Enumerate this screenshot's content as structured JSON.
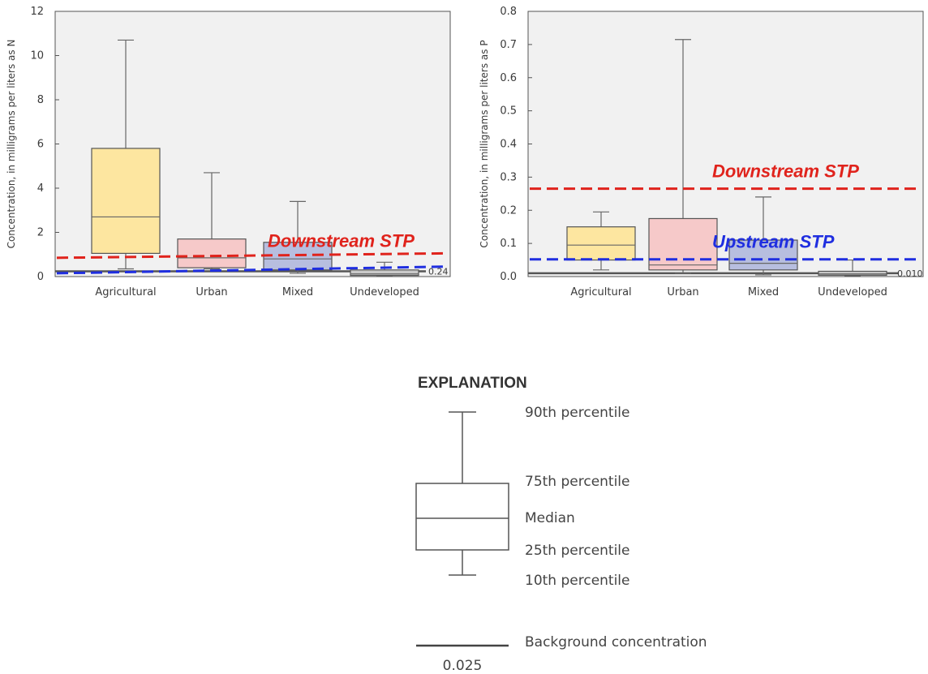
{
  "chart_data": [
    {
      "type": "box",
      "ylabel": "Concentration, in milligrams per liters as N",
      "ylim": [
        0,
        12
      ],
      "yticks": [
        0,
        2,
        4,
        6,
        8,
        10,
        12
      ],
      "categories": [
        "Agricultural",
        "Urban",
        "Mixed",
        "Undeveloped"
      ],
      "colors": [
        "#fde6a0",
        "#f6c9c9",
        "#b7bedf",
        "#c9c9c9"
      ],
      "boxes": [
        {
          "p10": 0.35,
          "p25": 1.05,
          "median": 2.7,
          "p75": 5.8,
          "p90": 10.7
        },
        {
          "p10": 0.35,
          "p25": 0.4,
          "median": 0.85,
          "p75": 1.7,
          "p90": 4.7
        },
        {
          "p10": 0.15,
          "p25": 0.3,
          "median": 0.8,
          "p75": 1.55,
          "p90": 3.4
        },
        {
          "p10": 0.02,
          "p25": 0.05,
          "median": 0.12,
          "p75": 0.3,
          "p90": 0.65
        }
      ],
      "background": {
        "value": 0.24,
        "label": "0.24"
      },
      "reference_lines": [
        {
          "label": "Downstream STP",
          "y_start": 0.85,
          "y_end": 1.05,
          "color": "#e0231c",
          "label_visible": true
        },
        {
          "label": "",
          "y_start": 0.15,
          "y_end": 0.45,
          "color": "#1f2ee0",
          "label_visible": false
        }
      ],
      "grid": false
    },
    {
      "type": "box",
      "ylabel": "Concentration, in milligrams per liters as P",
      "ylim": [
        0,
        0.8
      ],
      "yticks": [
        "0.0",
        "0.1",
        "0.2",
        "0.3",
        "0.4",
        "0.5",
        "0.6",
        "0.7",
        "0.8"
      ],
      "categories": [
        "Agricultural",
        "Urban",
        "Mixed",
        "Undeveloped"
      ],
      "colors": [
        "#fde6a0",
        "#f6c9c9",
        "#b7bedf",
        "#c9c9c9"
      ],
      "boxes": [
        {
          "p10": 0.02,
          "p25": 0.05,
          "median": 0.095,
          "p75": 0.15,
          "p90": 0.195
        },
        {
          "p10": 0.01,
          "p25": 0.02,
          "median": 0.035,
          "p75": 0.175,
          "p90": 0.715
        },
        {
          "p10": 0.005,
          "p25": 0.02,
          "median": 0.04,
          "p75": 0.11,
          "p90": 0.24
        },
        {
          "p10": 0.002,
          "p25": 0.004,
          "median": 0.008,
          "p75": 0.016,
          "p90": 0.05
        }
      ],
      "background": {
        "value": 0.01,
        "label": "0.010"
      },
      "reference_lines": [
        {
          "label": "Downstream STP",
          "y_start": 0.265,
          "y_end": 0.265,
          "color": "#e0231c",
          "label_visible": true
        },
        {
          "label": "Upstream STP",
          "y_start": 0.052,
          "y_end": 0.052,
          "color": "#1f2ee0",
          "label_visible": true
        }
      ],
      "grid": false
    }
  ],
  "explanation": {
    "title": "EXPLANATION",
    "labels": {
      "p90": "90th percentile",
      "p75": "75th percentile",
      "median": "Median",
      "p25": "25th percentile",
      "p10": "10th percentile",
      "background": "Background concentration"
    },
    "background_value": "0.025"
  }
}
